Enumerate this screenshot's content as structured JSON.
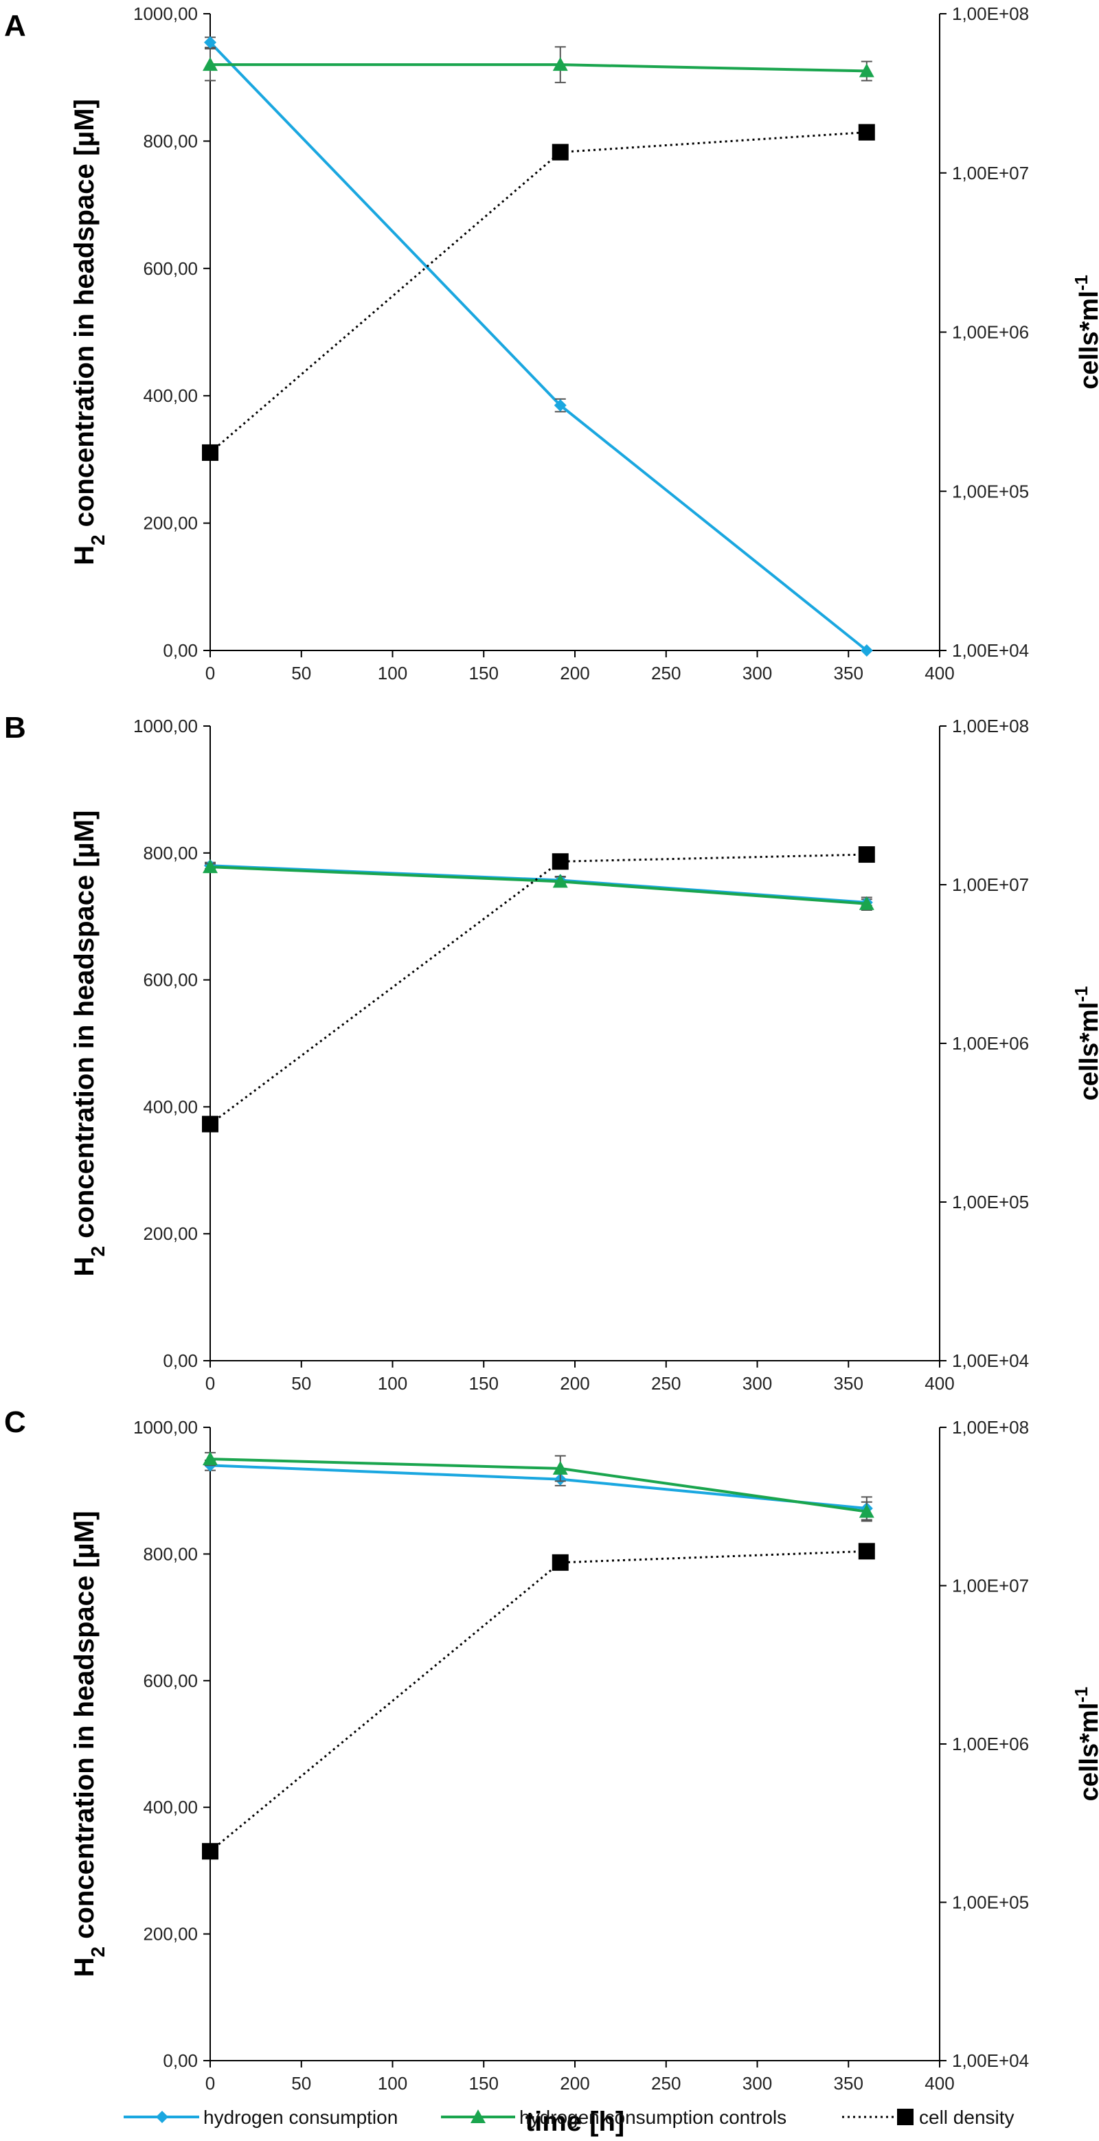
{
  "figure": {
    "legend": [
      {
        "key": "hydrogen",
        "label": "hydrogen consumption"
      },
      {
        "key": "control",
        "label": "hydrogen consumption controls"
      },
      {
        "key": "cells",
        "label": "cell density"
      }
    ],
    "colors": {
      "hydrogen": "#1aa7e0",
      "control": "#1aa54e",
      "cells": "#000000",
      "axis": "#000000"
    },
    "icons": {
      "hydrogen": "diamond-marker-icon",
      "control": "triangle-marker-icon",
      "cells": "square-marker-icon"
    }
  },
  "chart_data": [
    {
      "panel": "A",
      "type": "line",
      "xlabel": "",
      "ylabel": "H2 concentration in headspace [µM]",
      "y2label": "cells*ml-1",
      "x_ticks": [
        "0",
        "50",
        "100",
        "150",
        "200",
        "250",
        "300",
        "350",
        "400"
      ],
      "y_ticks": [
        "0,00",
        "200,00",
        "400,00",
        "600,00",
        "800,00",
        "1000,00"
      ],
      "y2_ticks": [
        "1,00E+04",
        "1,00E+05",
        "1,00E+06",
        "1,00E+07",
        "1,00E+08"
      ],
      "xlim": [
        0,
        400
      ],
      "ylim": [
        0,
        1000
      ],
      "y2lim_log10": [
        4,
        8
      ],
      "series": [
        {
          "key": "hydrogen",
          "name": "hydrogen consumption",
          "axis": "left",
          "x": [
            0,
            192,
            360
          ],
          "y": [
            955,
            385,
            0
          ],
          "err": [
            8,
            10,
            0
          ]
        },
        {
          "key": "control",
          "name": "hydrogen consumption controls",
          "axis": "left",
          "x": [
            0,
            192,
            360
          ],
          "y": [
            920,
            920,
            910
          ],
          "err": [
            25,
            28,
            15
          ]
        },
        {
          "key": "cells",
          "name": "cell density",
          "axis": "right",
          "x": [
            0,
            192,
            360
          ],
          "y": [
            175000,
            13500000,
            18000000
          ],
          "err": [
            0,
            0,
            0
          ]
        }
      ]
    },
    {
      "panel": "B",
      "type": "line",
      "xlabel": "",
      "ylabel": "H2 concentration in headspace [µM]",
      "y2label": "cells*ml-1",
      "x_ticks": [
        "0",
        "50",
        "100",
        "150",
        "200",
        "250",
        "300",
        "350",
        "400"
      ],
      "y_ticks": [
        "0,00",
        "200,00",
        "400,00",
        "600,00",
        "800,00",
        "1000,00"
      ],
      "y2_ticks": [
        "1,00E+04",
        "1,00E+05",
        "1,00E+06",
        "1,00E+07",
        "1,00E+08"
      ],
      "xlim": [
        0,
        400
      ],
      "ylim": [
        0,
        1000
      ],
      "y2lim_log10": [
        4,
        8
      ],
      "series": [
        {
          "key": "hydrogen",
          "name": "hydrogen consumption",
          "axis": "left",
          "x": [
            0,
            192,
            360
          ],
          "y": [
            780,
            757,
            722
          ],
          "err": [
            5,
            5,
            5
          ]
        },
        {
          "key": "control",
          "name": "hydrogen consumption controls",
          "axis": "left",
          "x": [
            0,
            192,
            360
          ],
          "y": [
            778,
            755,
            720
          ],
          "err": [
            5,
            8,
            10
          ]
        },
        {
          "key": "cells",
          "name": "cell density",
          "axis": "right",
          "x": [
            0,
            192,
            360
          ],
          "y": [
            310000,
            14000000,
            15500000
          ],
          "err": [
            0,
            0,
            0
          ]
        }
      ]
    },
    {
      "panel": "C",
      "type": "line",
      "xlabel": "time [h]",
      "ylabel": "H2 concentration in headspace [µM]",
      "y2label": "cells*ml-1",
      "x_ticks": [
        "0",
        "50",
        "100",
        "150",
        "200",
        "250",
        "300",
        "350",
        "400"
      ],
      "y_ticks": [
        "0,00",
        "200,00",
        "400,00",
        "600,00",
        "800,00",
        "1000,00"
      ],
      "y2_ticks": [
        "1,00E+04",
        "1,00E+05",
        "1,00E+06",
        "1,00E+07",
        "1,00E+08"
      ],
      "xlim": [
        0,
        400
      ],
      "ylim": [
        0,
        1000
      ],
      "y2lim_log10": [
        4,
        8
      ],
      "series": [
        {
          "key": "hydrogen",
          "name": "hydrogen consumption",
          "axis": "left",
          "x": [
            0,
            192,
            360
          ],
          "y": [
            940,
            918,
            872
          ],
          "err": [
            8,
            10,
            18
          ]
        },
        {
          "key": "control",
          "name": "hydrogen consumption controls",
          "axis": "left",
          "x": [
            0,
            192,
            360
          ],
          "y": [
            950,
            935,
            867
          ],
          "err": [
            10,
            20,
            15
          ]
        },
        {
          "key": "cells",
          "name": "cell density",
          "axis": "right",
          "x": [
            0,
            192,
            360
          ],
          "y": [
            210000,
            14000000,
            16500000
          ],
          "err": [
            0,
            0,
            0
          ]
        }
      ]
    }
  ]
}
